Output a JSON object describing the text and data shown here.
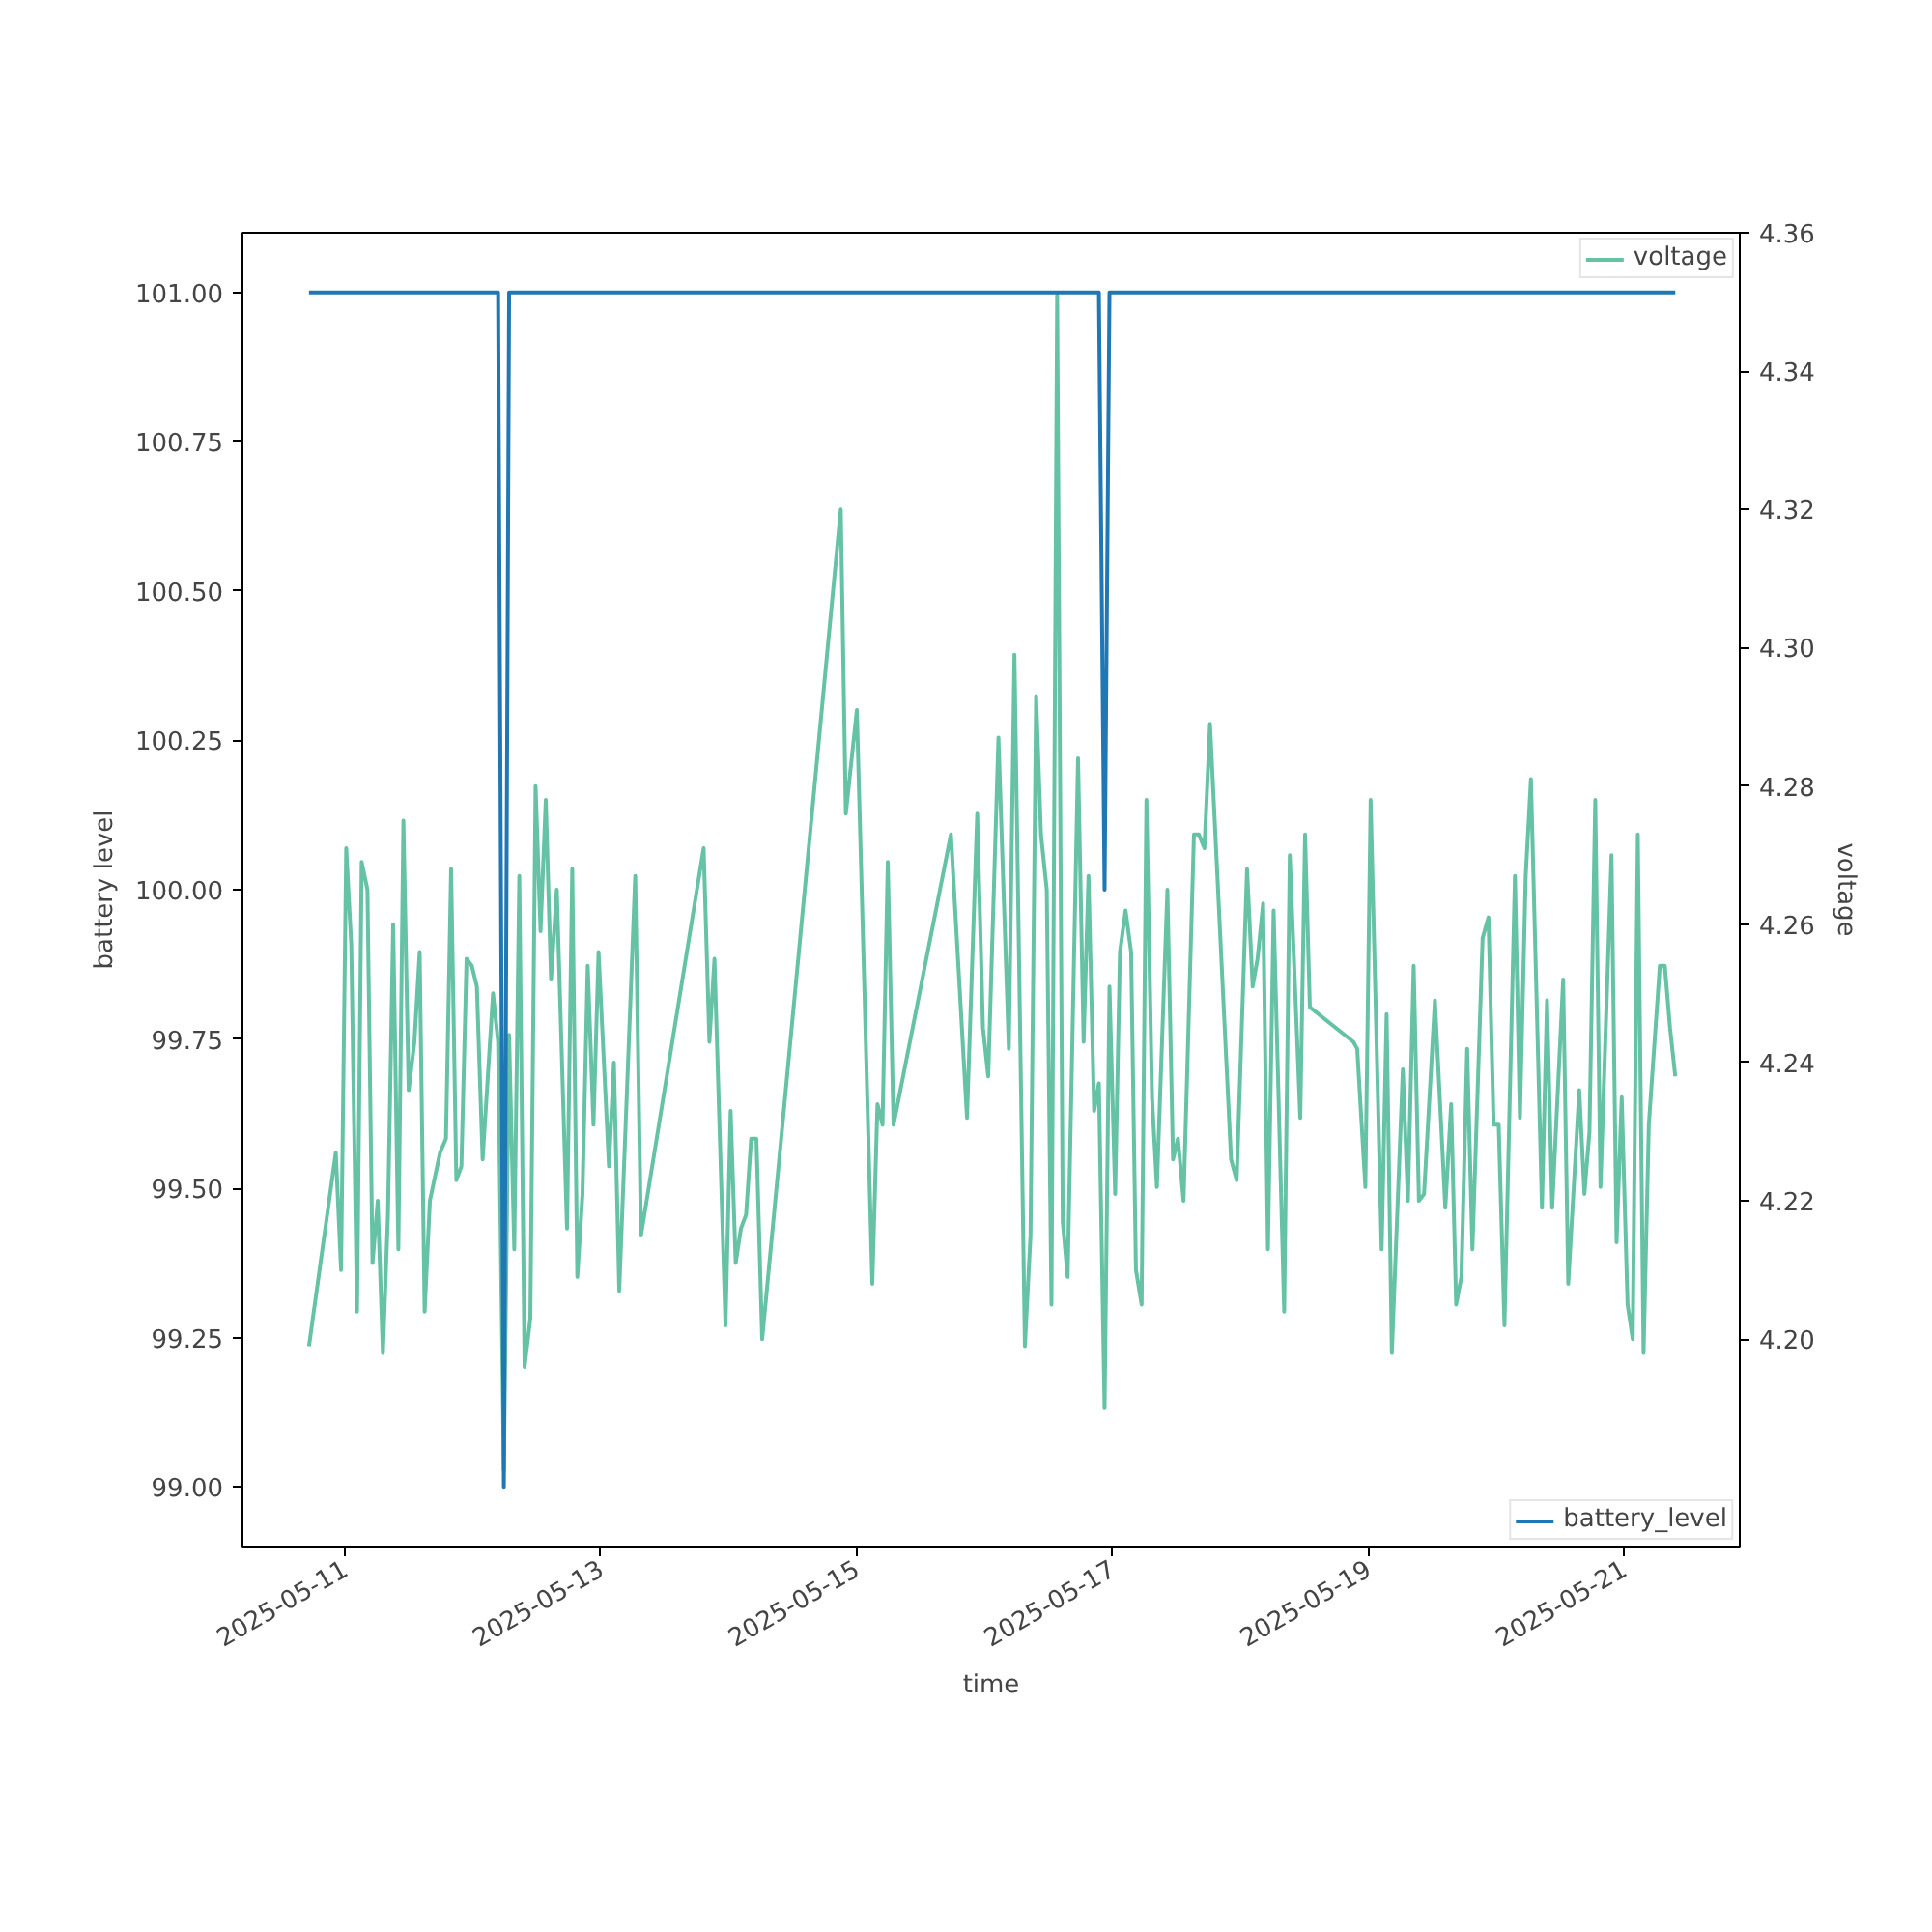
{
  "chart_data": {
    "type": "line",
    "xlabel": "time",
    "ylabel": "battery level",
    "y2label": "voltage",
    "xlim": [
      "2025-05-10T04:47",
      "2025-05-21T21:44"
    ],
    "xticks": [
      "2025-05-11",
      "2025-05-13",
      "2025-05-15",
      "2025-05-17",
      "2025-05-19",
      "2025-05-21"
    ],
    "ylim": [
      98.9,
      101.1
    ],
    "yticks": [
      {
        "value": 99,
        "label": "99.00"
      },
      {
        "value": 99.25,
        "label": "99.25"
      },
      {
        "value": 99.5,
        "label": "99.50"
      },
      {
        "value": 99.75,
        "label": "99.75"
      },
      {
        "value": 100,
        "label": "100.00"
      },
      {
        "value": 100.25,
        "label": "100.25"
      },
      {
        "value": 100.5,
        "label": "100.50"
      },
      {
        "value": 100.75,
        "label": "100.75"
      },
      {
        "value": 101,
        "label": "101.00"
      }
    ],
    "y2lim": [
      4.17,
      4.36
    ],
    "y2ticks": [
      {
        "value": 4.2,
        "label": "4.20"
      },
      {
        "value": 4.22,
        "label": "4.22"
      },
      {
        "value": 4.24,
        "label": "4.24"
      },
      {
        "value": 4.26,
        "label": "4.26"
      },
      {
        "value": 4.28,
        "label": "4.28"
      },
      {
        "value": 4.3,
        "label": "4.30"
      },
      {
        "value": 4.32,
        "label": "4.32"
      },
      {
        "value": 4.34,
        "label": "4.34"
      },
      {
        "value": 4.36,
        "label": "4.36"
      }
    ],
    "grid": false,
    "legend": "right",
    "series": [
      {
        "name": "voltage",
        "color": "#66c2a5",
        "axis": "y2",
        "x": [
          "2025-05-10T17:16",
          "2025-05-10T22:18",
          "2025-05-10T23:17",
          "2025-05-11T00:15",
          "2025-05-11T01:12",
          "2025-05-11T02:17",
          "2025-05-11T03:09",
          "2025-05-11T04:14",
          "2025-05-11T05:11",
          "2025-05-11T06:10",
          "2025-05-11T07:08",
          "2025-05-11T08:05",
          "2025-05-11T09:04",
          "2025-05-11T10:02",
          "2025-05-11T10:59",
          "2025-05-11T11:58",
          "2025-05-11T13:03",
          "2025-05-11T14:02",
          "2025-05-11T14:58",
          "2025-05-11T15:57",
          "2025-05-11T17:52",
          "2025-05-11T18:58",
          "2025-05-11T19:56",
          "2025-05-11T20:55",
          "2025-05-11T21:52",
          "2025-05-11T22:50",
          "2025-05-11T23:49",
          "2025-05-12T00:46",
          "2025-05-12T01:51",
          "2025-05-12T03:48",
          "2025-05-12T04:45",
          "2025-05-12T05:50",
          "2025-05-12T06:49",
          "2025-05-12T07:47",
          "2025-05-12T08:44",
          "2025-05-12T09:43",
          "2025-05-12T10:48",
          "2025-05-12T11:47",
          "2025-05-12T12:43",
          "2025-05-12T13:42",
          "2025-05-12T14:41",
          "2025-05-12T15:46",
          "2025-05-12T17:41",
          "2025-05-12T18:40",
          "2025-05-12T19:37",
          "2025-05-12T20:35",
          "2025-05-12T21:34",
          "2025-05-12T22:39",
          "2025-05-12T23:36",
          "2025-05-13T01:33",
          "2025-05-13T02:29",
          "2025-05-13T03:29",
          "2025-05-13T06:29",
          "2025-05-13T07:34",
          "2025-05-13T19:19",
          "2025-05-13T20:24",
          "2025-05-13T21:21",
          "2025-05-13T23:25",
          "2025-05-14T00:23",
          "2025-05-14T01:20",
          "2025-05-14T02:19",
          "2025-05-14T03:17",
          "2025-05-14T04:14",
          "2025-05-14T05:13",
          "2025-05-14T06:18",
          "2025-05-14T21:03",
          "2025-05-14T22:00",
          "2025-05-15T00:04",
          "2025-05-15T02:58",
          "2025-05-15T03:56",
          "2025-05-15T04:53",
          "2025-05-15T05:52",
          "2025-05-15T06:57",
          "2025-05-15T17:43",
          "2025-05-15T20:44",
          "2025-05-15T22:39",
          "2025-05-15T23:44",
          "2025-05-16T00:43",
          "2025-05-16T02:38",
          "2025-05-16T04:35",
          "2025-05-16T05:38",
          "2025-05-16T07:36",
          "2025-05-16T08:39",
          "2025-05-16T09:42",
          "2025-05-16T10:37",
          "2025-05-16T11:42",
          "2025-05-16T12:35",
          "2025-05-16T13:39",
          "2025-05-16T14:42",
          "2025-05-16T15:37",
          "2025-05-16T17:34",
          "2025-05-16T18:37",
          "2025-05-16T19:32",
          "2025-05-16T20:35",
          "2025-05-16T21:29",
          "2025-05-16T22:33",
          "2025-05-16T23:28",
          "2025-05-17T00:32",
          "2025-05-17T01:26",
          "2025-05-17T02:29",
          "2025-05-17T03:32",
          "2025-05-17T04:26",
          "2025-05-17T05:30",
          "2025-05-17T06:24",
          "2025-05-17T07:27",
          "2025-05-17T08:22",
          "2025-05-17T10:20",
          "2025-05-17T11:24",
          "2025-05-17T12:19",
          "2025-05-17T13:22",
          "2025-05-17T15:19",
          "2025-05-17T16:14",
          "2025-05-17T17:17",
          "2025-05-17T18:20",
          "2025-05-17T22:17",
          "2025-05-17T23:20",
          "2025-05-18T01:17",
          "2025-05-18T02:20",
          "2025-05-18T03:15",
          "2025-05-18T04:18",
          "2025-05-18T05:12",
          "2025-05-18T06:16",
          "2025-05-18T08:15",
          "2025-05-18T09:18",
          "2025-05-18T11:16",
          "2025-05-18T12:10",
          "2025-05-18T13:04",
          "2025-05-18T21:14",
          "2025-05-18T21:57",
          "2025-05-18T23:29",
          "2025-05-19T00:28",
          "2025-05-19T02:32",
          "2025-05-19T03:28",
          "2025-05-19T04:27",
          "2025-05-19T06:31",
          "2025-05-19T07:28",
          "2025-05-19T08:33",
          "2025-05-19T09:32",
          "2025-05-19T10:30",
          "2025-05-19T12:32",
          "2025-05-19T14:29",
          "2025-05-19T15:35",
          "2025-05-19T16:31",
          "2025-05-19T17:30",
          "2025-05-19T18:35",
          "2025-05-19T19:34",
          "2025-05-19T21:29",
          "2025-05-19T22:35",
          "2025-05-19T23:33",
          "2025-05-20T00:30",
          "2025-05-20T01:35",
          "2025-05-20T03:33",
          "2025-05-20T04:29",
          "2025-05-20T05:34",
          "2025-05-20T06:33",
          "2025-05-20T08:37",
          "2025-05-20T09:34",
          "2025-05-20T10:32",
          "2025-05-20T12:36",
          "2025-05-20T13:33",
          "2025-05-20T15:37",
          "2025-05-20T16:35",
          "2025-05-20T17:32",
          "2025-05-20T18:37",
          "2025-05-20T19:36",
          "2025-05-20T21:40",
          "2025-05-20T22:37",
          "2025-05-20T23:35",
          "2025-05-21T00:41",
          "2025-05-21T01:39",
          "2025-05-21T02:36",
          "2025-05-21T03:41",
          "2025-05-21T04:40",
          "2025-05-21T06:44",
          "2025-05-21T07:40",
          "2025-05-21T08:39",
          "2025-05-21T09:38"
        ],
        "values": [
          4.199,
          4.227,
          4.21,
          4.271,
          4.257,
          4.204,
          4.269,
          4.265,
          4.211,
          4.22,
          4.198,
          4.218,
          4.26,
          4.213,
          4.275,
          4.236,
          4.243,
          4.256,
          4.204,
          4.22,
          4.227,
          4.229,
          4.268,
          4.223,
          4.225,
          4.255,
          4.254,
          4.251,
          4.226,
          4.25,
          4.243,
          4.181,
          4.244,
          4.213,
          4.267,
          4.196,
          4.203,
          4.28,
          4.259,
          4.278,
          4.252,
          4.265,
          4.216,
          4.268,
          4.209,
          4.221,
          4.254,
          4.231,
          4.256,
          4.225,
          4.24,
          4.207,
          4.267,
          4.215,
          4.271,
          4.243,
          4.255,
          4.202,
          4.233,
          4.211,
          4.216,
          4.218,
          4.229,
          4.229,
          4.2,
          4.32,
          4.276,
          4.291,
          4.208,
          4.234,
          4.231,
          4.269,
          4.231,
          4.273,
          4.232,
          4.276,
          4.245,
          4.238,
          4.287,
          4.242,
          4.299,
          4.199,
          4.215,
          4.293,
          4.273,
          4.265,
          4.205,
          4.351,
          4.217,
          4.209,
          4.284,
          4.243,
          4.267,
          4.233,
          4.237,
          4.19,
          4.251,
          4.221,
          4.256,
          4.262,
          4.256,
          4.21,
          4.205,
          4.278,
          4.235,
          4.222,
          4.265,
          4.226,
          4.229,
          4.22,
          4.273,
          4.273,
          4.271,
          4.289,
          4.226,
          4.223,
          4.268,
          4.251,
          4.255,
          4.263,
          4.213,
          4.262,
          4.204,
          4.27,
          4.232,
          4.273,
          4.248,
          4.243,
          4.242,
          4.222,
          4.278,
          4.213,
          4.247,
          4.198,
          4.239,
          4.22,
          4.254,
          4.22,
          4.221,
          4.249,
          4.219,
          4.234,
          4.205,
          4.209,
          4.242,
          4.213,
          4.258,
          4.261,
          4.231,
          4.231,
          4.202,
          4.267,
          4.232,
          4.267,
          4.281,
          4.219,
          4.249,
          4.219,
          4.252,
          4.208,
          4.236,
          4.221,
          4.23,
          4.278,
          4.222,
          4.27,
          4.214,
          4.235,
          4.205,
          4.2,
          4.273,
          4.198,
          4.231,
          4.254,
          4.254,
          4.245,
          4.238
        ]
      },
      {
        "name": "battery_level",
        "color": "#1f77b4",
        "x": [
          "2025-05-10T17:16",
          "2025-05-12T04:45",
          "2025-05-12T05:50",
          "2025-05-12T06:49",
          "2025-05-16T21:29",
          "2025-05-16T22:33",
          "2025-05-16T23:28",
          "2025-05-21T09:38"
        ],
        "values": [
          101,
          101,
          99,
          101,
          101,
          100,
          101,
          101
        ]
      }
    ]
  }
}
